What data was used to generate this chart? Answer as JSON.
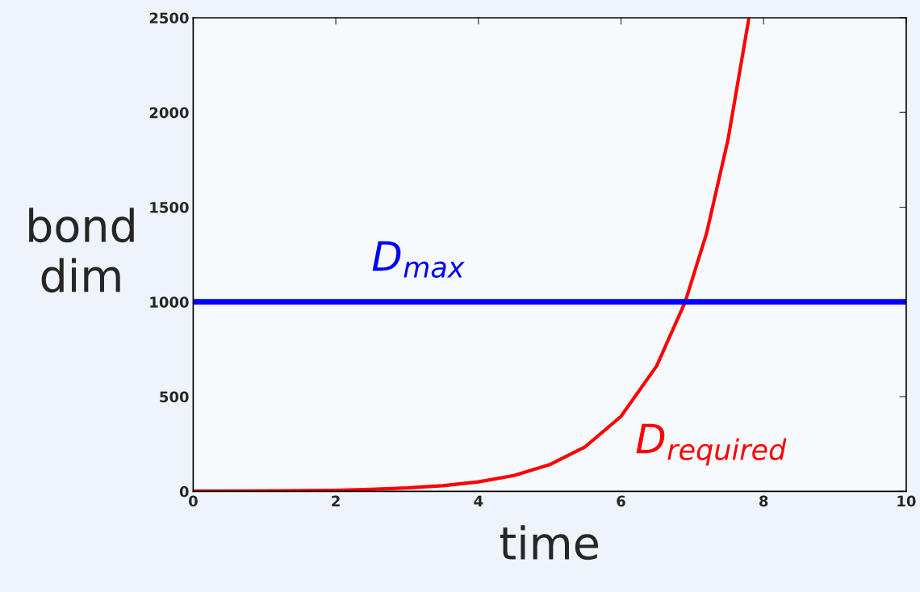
{
  "chart_data": {
    "type": "line",
    "xlabel": "time",
    "ylabel": "bond\ndim",
    "x": [
      0,
      1,
      2,
      2.5,
      3,
      3.5,
      4,
      4.5,
      5,
      5.5,
      6,
      6.5,
      6.9,
      7.2,
      7.5,
      7.79
    ],
    "series": [
      {
        "name": "D$_{required}$",
        "color": "#ff0000",
        "values": [
          1,
          2,
          6,
          11,
          18,
          30,
          50,
          84,
          141,
          236,
          396,
          662,
          1000,
          1362,
          1855,
          2490
        ]
      }
    ],
    "ref_lines": [
      {
        "axis": "y",
        "value": 1000,
        "label": "D$_{max}$",
        "color": "#0000ff"
      }
    ],
    "xlim": [
      0,
      10
    ],
    "ylim": [
      0,
      2500
    ],
    "xticks": [
      0,
      2,
      4,
      6,
      8,
      10
    ],
    "yticks": [
      0,
      500,
      1000,
      1500,
      2000,
      2500
    ],
    "grid": false,
    "legend": false,
    "marker": "none",
    "line_style": "solid"
  }
}
